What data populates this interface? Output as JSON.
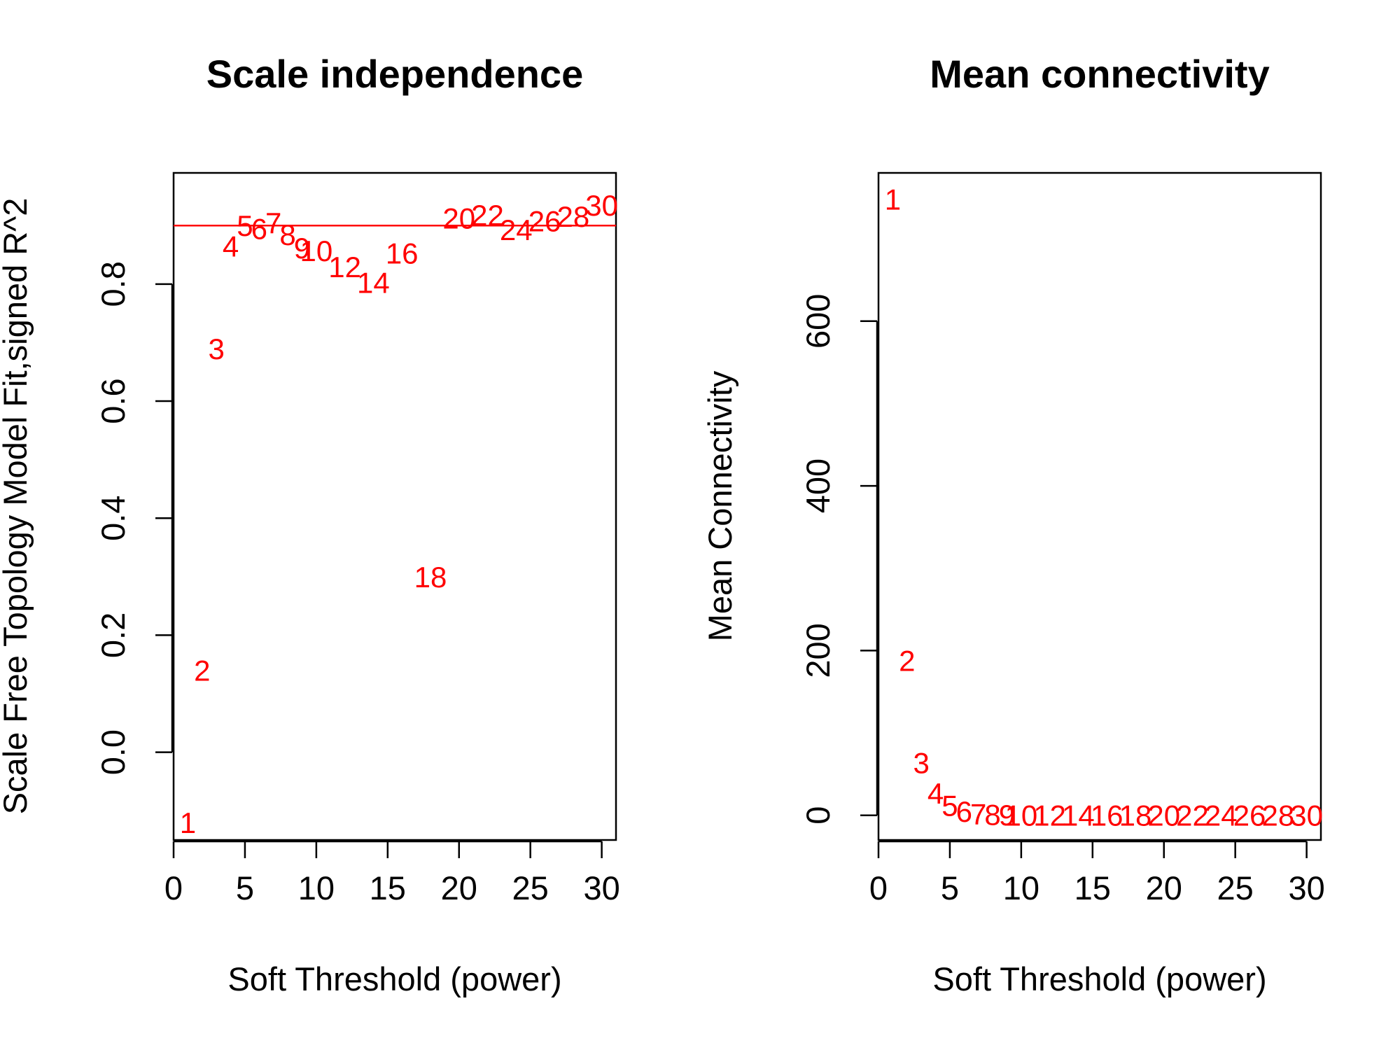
{
  "chart_data": [
    {
      "type": "scatter",
      "title": "Scale independence",
      "xlabel": "Soft Threshold (power)",
      "ylabel": "Scale Free Topology Model Fit,signed R^2",
      "xlim": [
        0,
        31
      ],
      "ylim": [
        -0.15,
        0.99
      ],
      "xticks": [
        0,
        5,
        10,
        15,
        20,
        25,
        30
      ],
      "yticks": [
        0.0,
        0.2,
        0.4,
        0.6,
        0.8
      ],
      "ytick_labels": [
        "0.0",
        "0.2",
        "0.4",
        "0.6",
        "0.8"
      ],
      "point_color": "#FF0000",
      "hline": {
        "y": 0.9,
        "color": "#FF0000"
      },
      "points": [
        {
          "x": 1,
          "y": -0.12,
          "label": "1"
        },
        {
          "x": 2,
          "y": 0.14,
          "label": "2"
        },
        {
          "x": 3,
          "y": 0.69,
          "label": "3"
        },
        {
          "x": 4,
          "y": 0.865,
          "label": "4"
        },
        {
          "x": 5,
          "y": 0.9,
          "label": "5"
        },
        {
          "x": 6,
          "y": 0.895,
          "label": "6"
        },
        {
          "x": 7,
          "y": 0.905,
          "label": "7"
        },
        {
          "x": 8,
          "y": 0.885,
          "label": "8"
        },
        {
          "x": 9,
          "y": 0.862,
          "label": "9"
        },
        {
          "x": 10,
          "y": 0.857,
          "label": "10"
        },
        {
          "x": 12,
          "y": 0.83,
          "label": "12"
        },
        {
          "x": 14,
          "y": 0.803,
          "label": "14"
        },
        {
          "x": 16,
          "y": 0.853,
          "label": "16"
        },
        {
          "x": 18,
          "y": 0.3,
          "label": "18"
        },
        {
          "x": 20,
          "y": 0.913,
          "label": "20"
        },
        {
          "x": 22,
          "y": 0.918,
          "label": "22"
        },
        {
          "x": 24,
          "y": 0.893,
          "label": "24"
        },
        {
          "x": 26,
          "y": 0.908,
          "label": "26"
        },
        {
          "x": 28,
          "y": 0.916,
          "label": "28"
        },
        {
          "x": 30,
          "y": 0.935,
          "label": "30"
        }
      ]
    },
    {
      "type": "scatter",
      "title": "Mean connectivity",
      "xlabel": "Soft Threshold (power)",
      "ylabel": "Mean Connectivity",
      "xlim": [
        0,
        31
      ],
      "ylim": [
        -30,
        780
      ],
      "xticks": [
        0,
        5,
        10,
        15,
        20,
        25,
        30
      ],
      "yticks": [
        0,
        200,
        400,
        600
      ],
      "ytick_labels": [
        "0",
        "200",
        "400",
        "600"
      ],
      "point_color": "#FF0000",
      "points": [
        {
          "x": 1,
          "y": 748,
          "label": "1"
        },
        {
          "x": 2,
          "y": 188,
          "label": "2"
        },
        {
          "x": 3,
          "y": 64,
          "label": "3"
        },
        {
          "x": 4,
          "y": 27,
          "label": "4"
        },
        {
          "x": 5,
          "y": 12,
          "label": "5"
        },
        {
          "x": 6,
          "y": 5,
          "label": "6"
        },
        {
          "x": 7,
          "y": 2,
          "label": "7"
        },
        {
          "x": 8,
          "y": 1,
          "label": "8"
        },
        {
          "x": 9,
          "y": 0.5,
          "label": "9"
        },
        {
          "x": 10,
          "y": 0.3,
          "label": "10"
        },
        {
          "x": 12,
          "y": 0.1,
          "label": "12"
        },
        {
          "x": 14,
          "y": 0,
          "label": "14"
        },
        {
          "x": 16,
          "y": 0,
          "label": "16"
        },
        {
          "x": 18,
          "y": 0,
          "label": "18"
        },
        {
          "x": 20,
          "y": 0,
          "label": "20"
        },
        {
          "x": 22,
          "y": 0,
          "label": "22"
        },
        {
          "x": 24,
          "y": 0,
          "label": "24"
        },
        {
          "x": 26,
          "y": 0,
          "label": "26"
        },
        {
          "x": 28,
          "y": 0,
          "label": "28"
        },
        {
          "x": 30,
          "y": 0,
          "label": "30"
        }
      ]
    }
  ]
}
